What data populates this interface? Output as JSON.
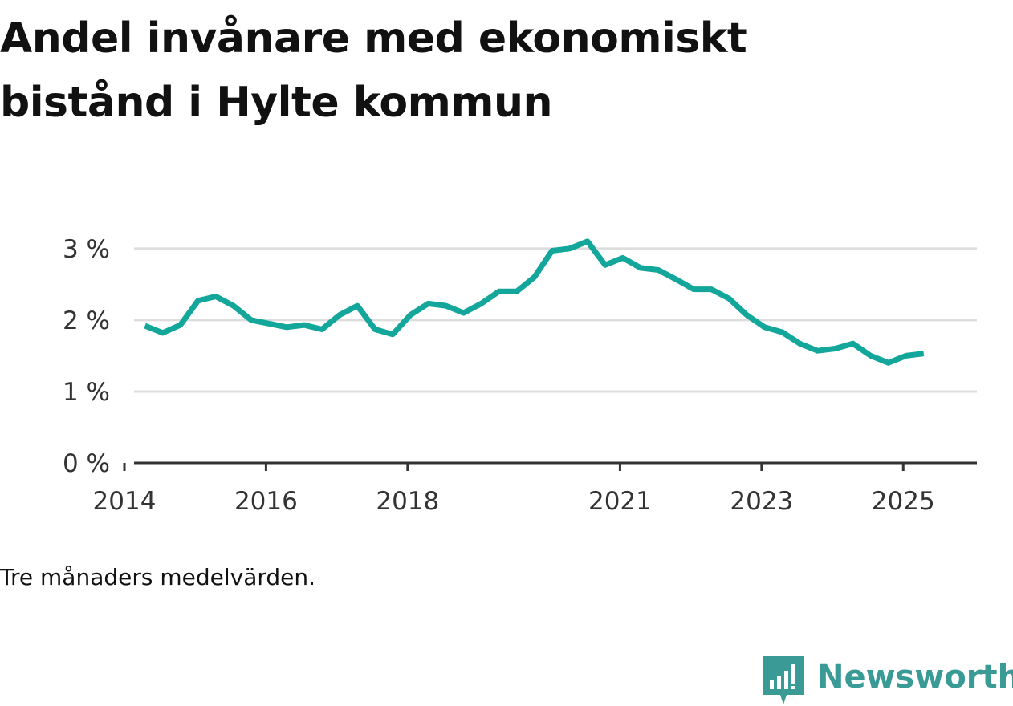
{
  "title": "Andel invånare med ekonomiskt bistånd i Hylte kommun",
  "note": "Tre månaders medelvärden.",
  "brand": {
    "name": "Newsworthy",
    "icon": "newsworthy-logo-icon",
    "color": "#3a9a96"
  },
  "colors": {
    "line": "#12a79a",
    "grid": "#dddddd",
    "axis": "#333333"
  },
  "chart_data": {
    "type": "line",
    "title": "Andel invånare med ekonomiskt bistånd i Hylte kommun",
    "xlabel": "",
    "ylabel": "",
    "ylim": [
      0,
      3.2
    ],
    "xlim": [
      2013.83,
      2026.04
    ],
    "y_ticks": [
      {
        "value": 0,
        "label": "0 %"
      },
      {
        "value": 1,
        "label": "1 %"
      },
      {
        "value": 2,
        "label": "2 %"
      },
      {
        "value": 3,
        "label": "3 %"
      }
    ],
    "x_ticks": [
      {
        "value": 2014,
        "label": "2014"
      },
      {
        "value": 2016,
        "label": "2016"
      },
      {
        "value": 2018,
        "label": "2018"
      },
      {
        "value": 2021,
        "label": "2021"
      },
      {
        "value": 2023,
        "label": "2023"
      },
      {
        "value": 2025,
        "label": "2025"
      }
    ],
    "grid": true,
    "series": [
      {
        "name": "Andel invånare med ekonomiskt bistånd",
        "x": [
          2014.29,
          2014.54,
          2014.79,
          2015.04,
          2015.29,
          2015.54,
          2015.79,
          2016.04,
          2016.29,
          2016.54,
          2016.79,
          2017.04,
          2017.29,
          2017.54,
          2017.79,
          2018.04,
          2018.29,
          2018.54,
          2018.79,
          2019.04,
          2019.29,
          2019.54,
          2019.79,
          2020.04,
          2020.29,
          2020.54,
          2020.79,
          2021.04,
          2021.29,
          2021.54,
          2021.79,
          2022.04,
          2022.29,
          2022.54,
          2022.79,
          2023.04,
          2023.29,
          2023.54,
          2023.79,
          2024.04,
          2024.29,
          2024.54,
          2024.79,
          2025.04,
          2025.29
        ],
        "values": [
          1.92,
          1.82,
          1.93,
          2.27,
          2.33,
          2.2,
          2.0,
          1.95,
          1.9,
          1.93,
          1.87,
          2.07,
          2.2,
          1.87,
          1.8,
          2.07,
          2.23,
          2.2,
          2.1,
          2.23,
          2.4,
          2.4,
          2.6,
          2.97,
          3.0,
          3.1,
          2.77,
          2.87,
          2.73,
          2.7,
          2.57,
          2.43,
          2.43,
          2.3,
          2.07,
          1.9,
          1.83,
          1.67,
          1.57,
          1.6,
          1.67,
          1.5,
          1.4,
          1.5,
          1.53
        ]
      }
    ]
  }
}
